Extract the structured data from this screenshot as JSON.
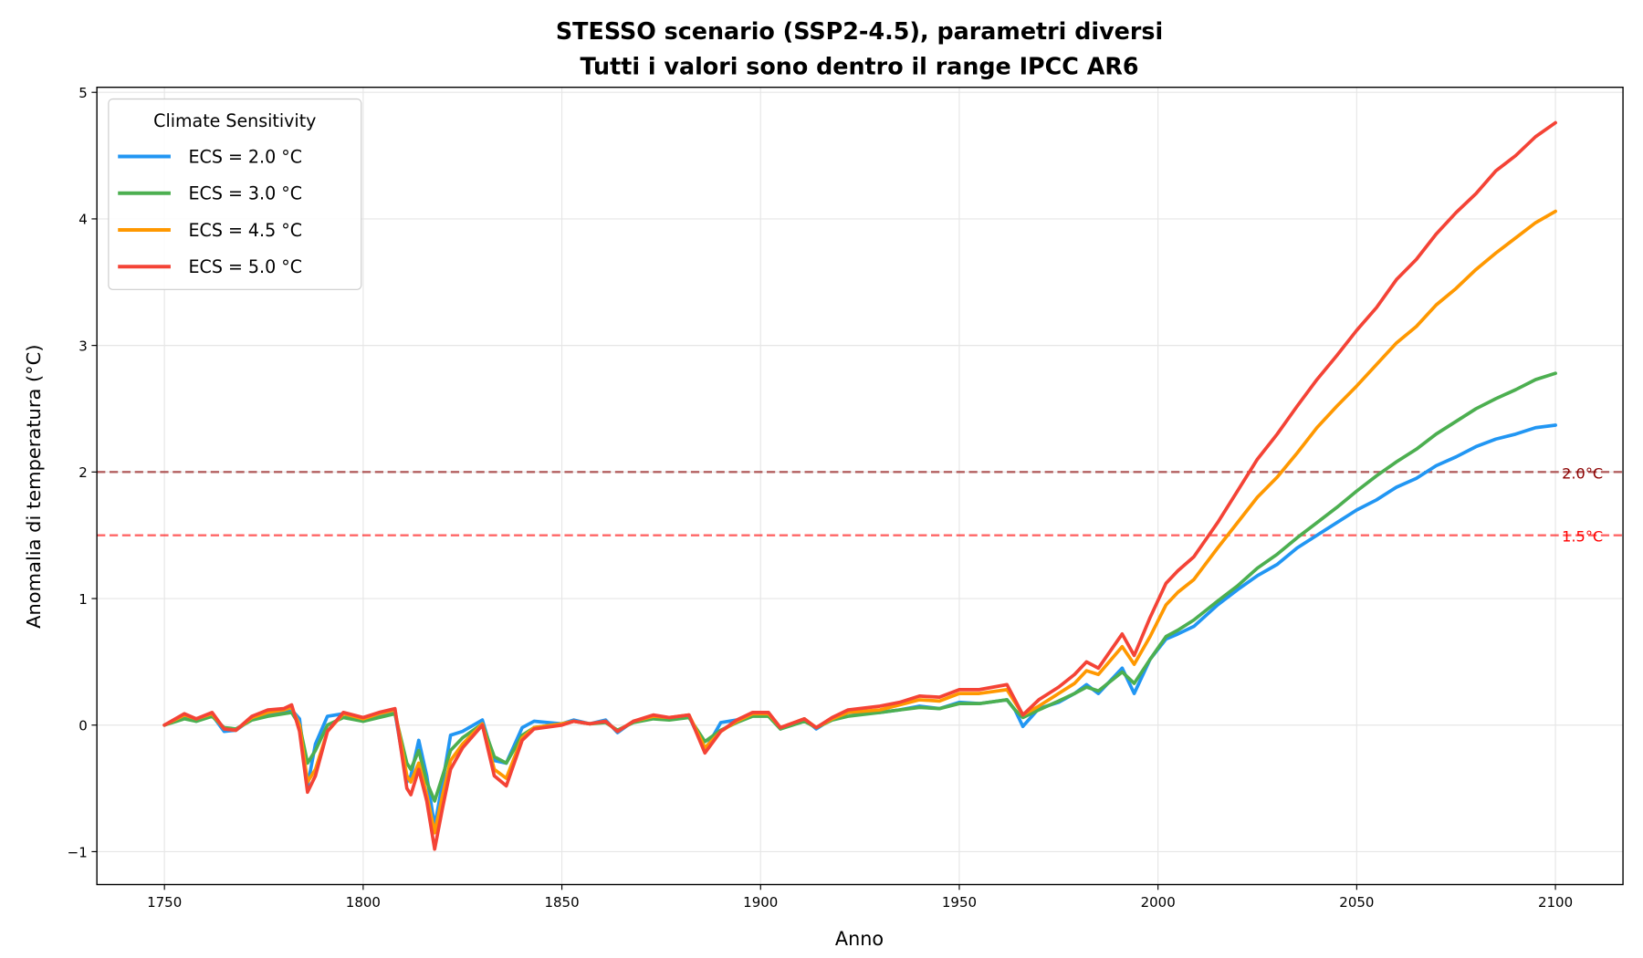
{
  "chart_data": {
    "type": "line",
    "title": [
      "STESSO scenario (SSP2-4.5), parametri diversi",
      "Tutti i valori sono dentro il range IPCC AR6"
    ],
    "xlabel": "Anno",
    "ylabel": "Anomalia di temperatura (°C)",
    "xlim": [
      1733,
      2117
    ],
    "ylim": [
      -1.26,
      5.04
    ],
    "xticks": [
      1750,
      1800,
      1850,
      1900,
      1950,
      2000,
      2050,
      2100
    ],
    "yticks": [
      -1,
      0,
      1,
      2,
      3,
      4,
      5
    ],
    "ytick_labels": [
      "−1",
      "0",
      "1",
      "2",
      "3",
      "4",
      "5"
    ],
    "grid": true,
    "legend": {
      "title": "Climate Sensitivity",
      "placement": "top-left"
    },
    "thresholds": [
      {
        "value": 2.0,
        "label": "2.0°C",
        "color": "#8b0000"
      },
      {
        "value": 1.5,
        "label": "1.5°C",
        "color": "#ff0000"
      }
    ],
    "x": [
      1750,
      1755,
      1758,
      1762,
      1765,
      1768,
      1772,
      1776,
      1780,
      1782,
      1784,
      1786,
      1788,
      1791,
      1795,
      1800,
      1804,
      1808,
      1811,
      1812,
      1814,
      1816,
      1818,
      1820,
      1822,
      1825,
      1830,
      1833,
      1836,
      1840,
      1843,
      1850,
      1853,
      1857,
      1861,
      1864,
      1868,
      1873,
      1877,
      1882,
      1886,
      1890,
      1894,
      1898,
      1902,
      1905,
      1911,
      1914,
      1918,
      1922,
      1930,
      1935,
      1940,
      1945,
      1950,
      1955,
      1962,
      1964,
      1966,
      1970,
      1975,
      1979,
      1982,
      1985,
      1991,
      1994,
      1998,
      2002,
      2005,
      2009,
      2015,
      2020,
      2025,
      2030,
      2035,
      2040,
      2045,
      2050,
      2055,
      2060,
      2065,
      2070,
      2075,
      2080,
      2085,
      2090,
      2095,
      2100
    ],
    "series": [
      {
        "name": "ECS = 2.0 °C",
        "color": "#2196f3",
        "values": [
          0,
          0.07,
          0.03,
          0.08,
          -0.05,
          -0.04,
          0.05,
          0.09,
          0.1,
          0.12,
          0.05,
          -0.48,
          -0.15,
          0.07,
          0.09,
          0.03,
          0.08,
          0.1,
          -0.45,
          -0.4,
          -0.12,
          -0.4,
          -0.8,
          -0.45,
          -0.08,
          -0.05,
          0.04,
          -0.28,
          -0.3,
          -0.02,
          0.03,
          0.01,
          0.04,
          0.01,
          0.04,
          -0.06,
          0.03,
          0.07,
          0.05,
          0.07,
          -0.2,
          0.02,
          0.04,
          0.09,
          0.08,
          -0.03,
          0.05,
          -0.03,
          0.05,
          0.1,
          0.1,
          0.12,
          0.15,
          0.13,
          0.18,
          0.17,
          0.2,
          0.12,
          -0.01,
          0.13,
          0.18,
          0.25,
          0.32,
          0.25,
          0.45,
          0.25,
          0.52,
          0.68,
          0.72,
          0.78,
          0.95,
          1.07,
          1.18,
          1.27,
          1.4,
          1.5,
          1.6,
          1.7,
          1.78,
          1.88,
          1.95,
          2.05,
          2.12,
          2.2,
          2.26,
          2.3,
          2.35,
          2.37
        ]
      },
      {
        "name": "ECS = 3.0 °C",
        "color": "#4caf50",
        "values": [
          0,
          0.05,
          0.03,
          0.07,
          -0.02,
          -0.03,
          0.04,
          0.07,
          0.09,
          0.1,
          0.0,
          -0.3,
          -0.2,
          0.0,
          0.06,
          0.03,
          0.06,
          0.09,
          -0.3,
          -0.35,
          -0.2,
          -0.45,
          -0.6,
          -0.4,
          -0.2,
          -0.1,
          0.01,
          -0.25,
          -0.3,
          -0.08,
          -0.02,
          0.01,
          0.03,
          0.01,
          0.02,
          -0.04,
          0.02,
          0.05,
          0.04,
          0.06,
          -0.13,
          -0.04,
          0.02,
          0.07,
          0.07,
          -0.03,
          0.03,
          -0.02,
          0.04,
          0.07,
          0.1,
          0.12,
          0.14,
          0.13,
          0.17,
          0.17,
          0.2,
          0.12,
          0.06,
          0.12,
          0.19,
          0.25,
          0.3,
          0.27,
          0.42,
          0.33,
          0.52,
          0.7,
          0.75,
          0.83,
          0.98,
          1.1,
          1.24,
          1.35,
          1.48,
          1.6,
          1.72,
          1.85,
          1.97,
          2.08,
          2.18,
          2.3,
          2.4,
          2.5,
          2.58,
          2.65,
          2.73,
          2.78
        ]
      },
      {
        "name": "ECS = 4.5 °C",
        "color": "#ff9800",
        "values": [
          0,
          0.08,
          0.05,
          0.09,
          -0.03,
          -0.04,
          0.06,
          0.1,
          0.12,
          0.14,
          0.0,
          -0.45,
          -0.35,
          -0.05,
          0.09,
          0.05,
          0.09,
          0.12,
          -0.4,
          -0.45,
          -0.3,
          -0.55,
          -0.85,
          -0.55,
          -0.28,
          -0.15,
          0.01,
          -0.35,
          -0.42,
          -0.1,
          -0.02,
          0.01,
          0.03,
          0.01,
          0.03,
          -0.05,
          0.03,
          0.07,
          0.06,
          0.08,
          -0.18,
          -0.05,
          0.03,
          0.09,
          0.09,
          -0.02,
          0.05,
          -0.02,
          0.05,
          0.1,
          0.12,
          0.16,
          0.2,
          0.19,
          0.25,
          0.25,
          0.28,
          0.18,
          0.08,
          0.15,
          0.25,
          0.33,
          0.43,
          0.4,
          0.62,
          0.48,
          0.7,
          0.95,
          1.05,
          1.15,
          1.4,
          1.6,
          1.8,
          1.96,
          2.15,
          2.35,
          2.52,
          2.68,
          2.85,
          3.02,
          3.15,
          3.32,
          3.45,
          3.6,
          3.73,
          3.85,
          3.97,
          4.06
        ]
      },
      {
        "name": "ECS = 5.0 °C",
        "color": "#f44336",
        "values": [
          0,
          0.09,
          0.05,
          0.1,
          -0.03,
          -0.04,
          0.07,
          0.12,
          0.13,
          0.16,
          -0.05,
          -0.53,
          -0.4,
          -0.05,
          0.1,
          0.06,
          0.1,
          0.13,
          -0.5,
          -0.55,
          -0.35,
          -0.6,
          -0.98,
          -0.65,
          -0.35,
          -0.18,
          0.0,
          -0.4,
          -0.48,
          -0.12,
          -0.03,
          0.0,
          0.03,
          0.01,
          0.03,
          -0.05,
          0.03,
          0.08,
          0.06,
          0.08,
          -0.22,
          -0.05,
          0.04,
          0.1,
          0.1,
          -0.02,
          0.05,
          -0.02,
          0.06,
          0.12,
          0.15,
          0.18,
          0.23,
          0.22,
          0.28,
          0.28,
          0.32,
          0.2,
          0.08,
          0.2,
          0.3,
          0.4,
          0.5,
          0.45,
          0.72,
          0.55,
          0.85,
          1.12,
          1.22,
          1.33,
          1.6,
          1.85,
          2.1,
          2.3,
          2.52,
          2.73,
          2.92,
          3.12,
          3.3,
          3.52,
          3.68,
          3.88,
          4.05,
          4.2,
          4.38,
          4.5,
          4.65,
          4.76
        ]
      }
    ]
  }
}
